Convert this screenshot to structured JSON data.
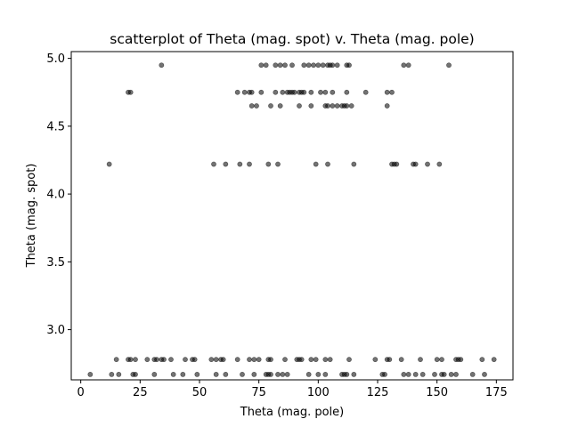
{
  "chart_data": {
    "type": "scatter",
    "title": "scatterplot of Theta (mag. spot) v. Theta (mag. pole)",
    "xlabel": "Theta (mag. pole)",
    "ylabel": "Theta (mag. spot)",
    "xlim": [
      -4,
      182
    ],
    "ylim": [
      2.63,
      5.05
    ],
    "xticks": [
      0,
      25,
      50,
      75,
      100,
      125,
      150,
      175
    ],
    "yticks": [
      3.0,
      3.5,
      4.0,
      4.5,
      5.0
    ],
    "xtick_labels": [
      "0",
      "25",
      "50",
      "75",
      "100",
      "125",
      "150",
      "175"
    ],
    "ytick_labels": [
      "3.0",
      "3.5",
      "4.0",
      "4.5",
      "5.0"
    ],
    "grid": false,
    "marker_color": "#000000",
    "marker_alpha": 0.55,
    "series": [
      {
        "points": [
          [
            34,
            4.95
          ],
          [
            76,
            4.95
          ],
          [
            78,
            4.95
          ],
          [
            82,
            4.95
          ],
          [
            84,
            4.95
          ],
          [
            86,
            4.95
          ],
          [
            89,
            4.95
          ],
          [
            94,
            4.95
          ],
          [
            96,
            4.95
          ],
          [
            98,
            4.95
          ],
          [
            100,
            4.95
          ],
          [
            102,
            4.95
          ],
          [
            104,
            4.95
          ],
          [
            105,
            4.95
          ],
          [
            106,
            4.95
          ],
          [
            108,
            4.95
          ],
          [
            112,
            4.95
          ],
          [
            113,
            4.95
          ],
          [
            136,
            4.95
          ],
          [
            138,
            4.95
          ],
          [
            155,
            4.95
          ],
          [
            20,
            4.75
          ],
          [
            21,
            4.75
          ],
          [
            66,
            4.75
          ],
          [
            69,
            4.75
          ],
          [
            71,
            4.75
          ],
          [
            72,
            4.75
          ],
          [
            76,
            4.75
          ],
          [
            82,
            4.75
          ],
          [
            85,
            4.75
          ],
          [
            87,
            4.75
          ],
          [
            88,
            4.75
          ],
          [
            89,
            4.75
          ],
          [
            90,
            4.75
          ],
          [
            92,
            4.75
          ],
          [
            93,
            4.75
          ],
          [
            94,
            4.75
          ],
          [
            97,
            4.75
          ],
          [
            101,
            4.75
          ],
          [
            103,
            4.75
          ],
          [
            106,
            4.75
          ],
          [
            112,
            4.75
          ],
          [
            120,
            4.75
          ],
          [
            129,
            4.75
          ],
          [
            131,
            4.75
          ],
          [
            72,
            4.65
          ],
          [
            74,
            4.65
          ],
          [
            80,
            4.65
          ],
          [
            84,
            4.65
          ],
          [
            92,
            4.65
          ],
          [
            97,
            4.65
          ],
          [
            103,
            4.65
          ],
          [
            104,
            4.65
          ],
          [
            106,
            4.65
          ],
          [
            108,
            4.65
          ],
          [
            110,
            4.65
          ],
          [
            111,
            4.65
          ],
          [
            112,
            4.65
          ],
          [
            114,
            4.65
          ],
          [
            129,
            4.65
          ],
          [
            12,
            4.22
          ],
          [
            56,
            4.22
          ],
          [
            61,
            4.22
          ],
          [
            67,
            4.22
          ],
          [
            71,
            4.22
          ],
          [
            79,
            4.22
          ],
          [
            83,
            4.22
          ],
          [
            99,
            4.22
          ],
          [
            104,
            4.22
          ],
          [
            115,
            4.22
          ],
          [
            131,
            4.22
          ],
          [
            132,
            4.22
          ],
          [
            133,
            4.22
          ],
          [
            140,
            4.22
          ],
          [
            141,
            4.22
          ],
          [
            146,
            4.22
          ],
          [
            151,
            4.22
          ],
          [
            15,
            2.78
          ],
          [
            20,
            2.78
          ],
          [
            21,
            2.78
          ],
          [
            23,
            2.78
          ],
          [
            28,
            2.78
          ],
          [
            31,
            2.78
          ],
          [
            32,
            2.78
          ],
          [
            34,
            2.78
          ],
          [
            35,
            2.78
          ],
          [
            38,
            2.78
          ],
          [
            44,
            2.78
          ],
          [
            47,
            2.78
          ],
          [
            48,
            2.78
          ],
          [
            55,
            2.78
          ],
          [
            57,
            2.78
          ],
          [
            59,
            2.78
          ],
          [
            60,
            2.78
          ],
          [
            66,
            2.78
          ],
          [
            71,
            2.78
          ],
          [
            73,
            2.78
          ],
          [
            75,
            2.78
          ],
          [
            79,
            2.78
          ],
          [
            80,
            2.78
          ],
          [
            86,
            2.78
          ],
          [
            91,
            2.78
          ],
          [
            92,
            2.78
          ],
          [
            93,
            2.78
          ],
          [
            97,
            2.78
          ],
          [
            99,
            2.78
          ],
          [
            103,
            2.78
          ],
          [
            105,
            2.78
          ],
          [
            113,
            2.78
          ],
          [
            124,
            2.78
          ],
          [
            129,
            2.78
          ],
          [
            130,
            2.78
          ],
          [
            135,
            2.78
          ],
          [
            143,
            2.78
          ],
          [
            150,
            2.78
          ],
          [
            152,
            2.78
          ],
          [
            158,
            2.78
          ],
          [
            159,
            2.78
          ],
          [
            160,
            2.78
          ],
          [
            169,
            2.78
          ],
          [
            174,
            2.78
          ],
          [
            4,
            2.67
          ],
          [
            13,
            2.67
          ],
          [
            16,
            2.67
          ],
          [
            22,
            2.67
          ],
          [
            23,
            2.67
          ],
          [
            31,
            2.67
          ],
          [
            39,
            2.67
          ],
          [
            43,
            2.67
          ],
          [
            49,
            2.67
          ],
          [
            57,
            2.67
          ],
          [
            61,
            2.67
          ],
          [
            68,
            2.67
          ],
          [
            73,
            2.67
          ],
          [
            78,
            2.67
          ],
          [
            79,
            2.67
          ],
          [
            80,
            2.67
          ],
          [
            83,
            2.67
          ],
          [
            85,
            2.67
          ],
          [
            87,
            2.67
          ],
          [
            96,
            2.67
          ],
          [
            100,
            2.67
          ],
          [
            103,
            2.67
          ],
          [
            110,
            2.67
          ],
          [
            111,
            2.67
          ],
          [
            112,
            2.67
          ],
          [
            115,
            2.67
          ],
          [
            127,
            2.67
          ],
          [
            128,
            2.67
          ],
          [
            136,
            2.67
          ],
          [
            138,
            2.67
          ],
          [
            141,
            2.67
          ],
          [
            144,
            2.67
          ],
          [
            149,
            2.67
          ],
          [
            152,
            2.67
          ],
          [
            153,
            2.67
          ],
          [
            156,
            2.67
          ],
          [
            158,
            2.67
          ],
          [
            165,
            2.67
          ],
          [
            170,
            2.67
          ]
        ]
      }
    ]
  }
}
